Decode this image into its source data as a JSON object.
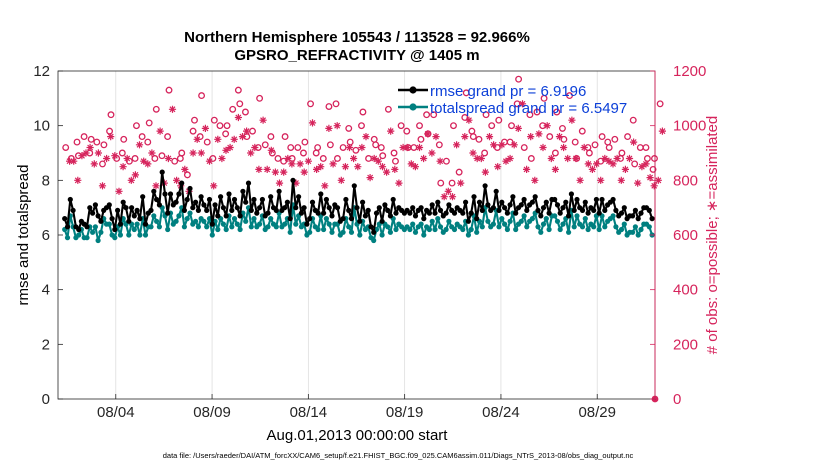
{
  "chart_data": {
    "type": "line",
    "title_line1": "Northern Hemisphere 105543 / 113528 = 92.966%",
    "title_line2": "GPSRO_REFRACTIVITY @ 1405 m",
    "xlabel": "Aug.01,2013 00:00:00 start",
    "ylabel": "rmse and totalspread",
    "y2label": "# of obs: o=possible; ∗=assimilated",
    "x_tick_labels": [
      "08/04",
      "08/09",
      "08/14",
      "08/19",
      "08/24",
      "08/29"
    ],
    "x_tick_days": [
      4,
      9,
      14,
      19,
      24,
      29
    ],
    "xlim": [
      1,
      32
    ],
    "ylim": [
      0,
      12
    ],
    "y_ticks": [
      0,
      2,
      4,
      6,
      8,
      10,
      12
    ],
    "y2lim": [
      0,
      1200
    ],
    "y2_ticks": [
      0,
      200,
      400,
      600,
      800,
      1000,
      1200
    ],
    "footnote": "data file: /Users/raeder/DAI/ATM_forcXX/CAM6_setup/f.e21.FHIST_BGC.f09_025.CAM6assim.011/Diags_NTrS_2013-08/obs_diag_output.nc",
    "series": [
      {
        "name": "rmse grand pr = 6.9196",
        "color": "#000000",
        "axis": "left",
        "values": [
          6.6,
          6.3,
          7.3,
          6.9,
          6.3,
          6.2,
          6.5,
          6.4,
          6.3,
          7.0,
          6.8,
          7.1,
          6.7,
          6.5,
          6.9,
          7.0,
          7.1,
          6.6,
          6.2,
          6.9,
          6.4,
          7.2,
          7.0,
          6.5,
          7.0,
          6.7,
          6.9,
          6.6,
          7.4,
          6.4,
          6.8,
          6.9,
          7.6,
          7.3,
          7.1,
          8.3,
          7.5,
          6.8,
          7.5,
          7.1,
          7.2,
          7.5,
          7.9,
          6.9,
          7.3,
          7.7,
          7.0,
          7.2,
          6.9,
          7.4,
          7.1,
          6.9,
          7.3,
          6.4,
          7.1,
          6.7,
          7.4,
          7.0,
          6.7,
          7.5,
          6.9,
          7.3,
          7.0,
          6.7,
          7.6,
          7.2,
          7.9,
          6.9,
          7.3,
          6.8,
          7.0,
          7.3,
          6.7,
          6.8,
          7.4,
          7.0,
          6.9,
          7.6,
          6.9,
          7.0,
          7.2,
          6.6,
          8.0,
          7.0,
          7.4,
          6.8,
          7.0,
          6.4,
          6.6,
          7.2,
          6.9,
          6.8,
          7.5,
          6.8,
          7.3,
          7.0,
          6.7,
          7.1,
          7.0,
          6.5,
          6.6,
          7.3,
          6.9,
          6.6,
          7.8,
          7.0,
          6.5,
          7.2,
          6.7,
          6.9,
          6.3,
          6.1,
          6.8,
          7.0,
          6.5,
          7.1,
          6.9,
          6.7,
          7.3,
          6.8,
          7.0,
          6.9,
          6.8,
          6.9,
          6.8,
          7.0,
          6.7,
          6.9,
          7.0,
          6.6,
          6.9,
          6.8,
          7.1,
          6.8,
          7.2,
          6.9,
          6.7,
          6.8,
          7.1,
          6.9,
          6.8,
          7.0,
          6.9,
          6.8,
          7.2,
          6.5,
          6.8,
          7.4,
          6.6,
          7.2,
          6.9,
          7.8,
          7.1,
          6.9,
          7.0,
          7.6,
          6.9,
          7.2,
          7.0,
          6.8,
          7.1,
          7.4,
          6.8,
          7.0,
          7.1,
          7.3,
          6.9,
          7.1,
          7.2,
          7.4,
          6.9,
          6.7,
          7.0,
          7.2,
          6.8,
          7.3,
          7.3,
          7.1,
          6.8,
          7.0,
          7.2,
          6.7,
          7.5,
          6.9,
          7.3,
          7.0,
          6.9,
          7.2,
          6.8,
          7.0,
          6.9,
          7.3,
          6.8,
          7.3,
          6.9,
          7.1,
          7.2,
          7.3,
          6.9,
          6.7,
          6.8,
          7.0,
          6.6,
          6.7,
          6.7,
          6.9,
          6.6,
          6.8,
          7.0,
          7.0,
          6.9,
          6.6
        ]
      },
      {
        "name": "totalspread grand pr = 6.5497",
        "color": "#008080",
        "axis": "left",
        "values": [
          6.2,
          5.9,
          6.7,
          6.3,
          5.9,
          6.0,
          6.2,
          5.9,
          5.9,
          6.3,
          6.1,
          6.3,
          5.8,
          6.1,
          6.6,
          6.4,
          6.4,
          6.0,
          5.9,
          6.3,
          6.0,
          6.6,
          6.4,
          6.0,
          6.4,
          6.2,
          6.4,
          6.0,
          6.6,
          6.0,
          6.3,
          6.3,
          6.7,
          6.5,
          6.3,
          7.0,
          6.7,
          6.2,
          6.8,
          6.4,
          6.5,
          6.7,
          7.0,
          6.3,
          6.6,
          6.8,
          6.4,
          6.5,
          6.3,
          6.6,
          6.5,
          6.3,
          6.6,
          6.0,
          6.5,
          6.2,
          6.6,
          6.4,
          6.2,
          6.7,
          6.3,
          6.6,
          6.4,
          6.2,
          6.8,
          6.5,
          7.0,
          6.3,
          6.6,
          6.3,
          6.4,
          6.7,
          6.2,
          6.3,
          6.6,
          6.4,
          6.3,
          6.8,
          6.3,
          6.4,
          6.6,
          6.1,
          7.1,
          6.4,
          6.7,
          6.3,
          6.4,
          6.0,
          6.1,
          6.6,
          6.3,
          6.2,
          6.7,
          6.2,
          6.6,
          6.4,
          6.1,
          6.4,
          6.4,
          6.0,
          6.1,
          6.6,
          6.3,
          6.1,
          7.0,
          6.4,
          6.0,
          6.5,
          6.2,
          6.3,
          5.9,
          5.8,
          6.2,
          6.4,
          6.0,
          6.4,
          6.3,
          6.1,
          6.6,
          6.2,
          6.4,
          6.3,
          6.2,
          6.3,
          6.2,
          6.4,
          6.1,
          6.3,
          6.4,
          6.0,
          6.3,
          6.2,
          6.5,
          6.2,
          6.6,
          6.3,
          6.1,
          6.2,
          6.5,
          6.3,
          6.2,
          6.4,
          6.3,
          6.2,
          6.5,
          6.0,
          6.2,
          6.7,
          6.1,
          6.5,
          6.3,
          7.0,
          6.5,
          6.3,
          6.4,
          6.9,
          6.3,
          6.6,
          6.4,
          6.2,
          6.5,
          6.8,
          6.2,
          6.4,
          6.5,
          6.7,
          6.3,
          6.5,
          6.6,
          6.8,
          6.3,
          6.1,
          6.4,
          6.6,
          6.2,
          6.7,
          6.7,
          6.5,
          6.2,
          6.4,
          6.6,
          6.1,
          6.9,
          6.3,
          6.7,
          6.4,
          6.3,
          6.6,
          6.2,
          6.4,
          6.3,
          6.7,
          6.2,
          6.7,
          6.3,
          6.5,
          6.6,
          6.7,
          6.3,
          6.1,
          6.2,
          6.4,
          6.0,
          6.1,
          6.1,
          6.3,
          6.0,
          6.2,
          6.4,
          6.4,
          6.3,
          6.0
        ]
      },
      {
        "name": "obs possible",
        "color": "#d6245c",
        "axis": "right",
        "marker": "circle",
        "values": [
          920,
          880,
          940,
          890,
          960,
          900,
          950,
          940,
          860,
          930,
          980,
          1040,
          880,
          900,
          950,
          870,
          880,
          1000,
          960,
          940,
          1010,
          880,
          1060,
          890,
          960,
          1130,
          870,
          880,
          900,
          820,
          980,
          1020,
          960,
          1110,
          940,
          880,
          1020,
          1000,
          970,
          1000,
          1060,
          1130,
          1080,
          1050,
          960,
          980,
          920,
          1100,
          930,
          960,
          900,
          880,
          870,
          960,
          920,
          880,
          920,
          900,
          940,
          1080,
          900,
          920,
          880,
          1070,
          930,
          1080,
          880,
          920,
          990,
          940,
          910,
          1000,
          1050,
          880,
          950,
          930,
          920,
          890,
          1060,
          900,
          870,
          1000,
          980,
          920,
          920,
          1000,
          950,
          1040,
          970,
          1040,
          930,
          790,
          870,
          790,
          1000,
          830,
          1030,
          1120,
          980,
          960,
          950,
          900,
          1040,
          1000,
          920,
          1020,
          940,
          940,
          1000,
          1080,
          1170,
          920,
          1040,
          880,
          1050,
          1000,
          1100,
          960,
          900,
          1050,
          990,
          950,
          1110,
          940,
          880,
          980,
          920,
          900,
          930,
          870,
          960,
          940,
          920,
          950,
          880,
          900,
          960,
          1020,
          860,
          920,
          920,
          880,
          840,
          880,
          1080
        ]
      },
      {
        "name": "obs assimilated",
        "color": "#d6245c",
        "axis": "right",
        "marker": "star",
        "values": [
          870,
          870,
          800,
          890,
          900,
          920,
          860,
          900,
          780,
          880,
          960,
          890,
          760,
          850,
          880,
          800,
          820,
          930,
          870,
          860,
          900,
          780,
          980,
          790,
          880,
          1060,
          800,
          780,
          840,
          760,
          900,
          950,
          900,
          990,
          870,
          780,
          950,
          880,
          910,
          920,
          950,
          1030,
          960,
          980,
          900,
          920,
          840,
          1020,
          840,
          910,
          830,
          790,
          830,
          880,
          860,
          790,
          860,
          830,
          870,
          1010,
          840,
          850,
          780,
          990,
          860,
          1000,
          800,
          850,
          920,
          880,
          850,
          920,
          960,
          810,
          880,
          870,
          850,
          830,
          980,
          840,
          790,
          920,
          920,
          860,
          850,
          920,
          880,
          970,
          900,
          960,
          870,
          740,
          760,
          740,
          930,
          790,
          960,
          1020,
          900,
          880,
          880,
          830,
          960,
          930,
          850,
          930,
          870,
          880,
          930,
          990,
          1080,
          840,
          960,
          800,
          970,
          920,
          1000,
          880,
          840,
          960,
          920,
          880,
          1020,
          880,
          800,
          920,
          860,
          840,
          860,
          800,
          880,
          870,
          860,
          880,
          800,
          840,
          880,
          940,
          790,
          850,
          860,
          810,
          780,
          800,
          980
        ]
      }
    ]
  }
}
